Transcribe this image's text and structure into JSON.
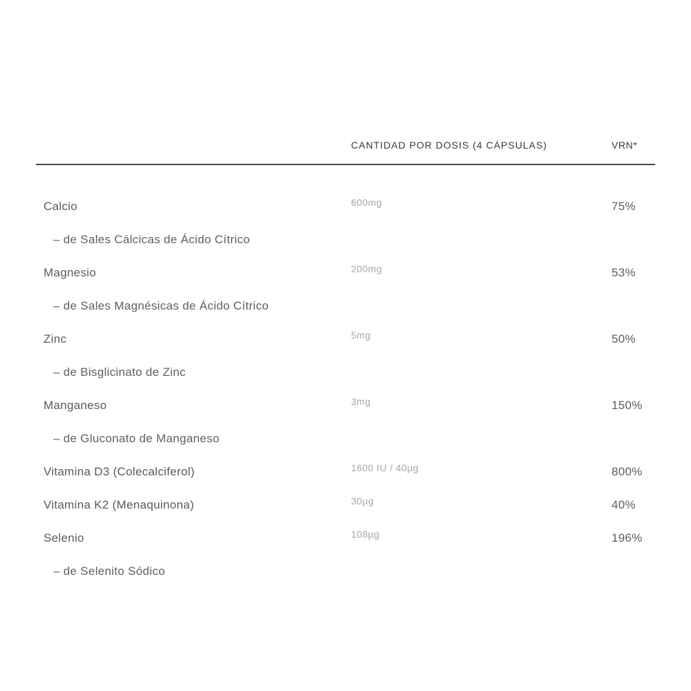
{
  "table": {
    "header": {
      "amount_label": "CANTIDAD POR DOSIS (4 CÁPSULAS)",
      "vrn_label": "VRN*"
    },
    "rows": [
      {
        "name": "Calcio",
        "amount": "600mg",
        "vrn": "75%",
        "sub": "– de Sales Cálcicas de Ácido Cítrico"
      },
      {
        "name": "Magnesio",
        "amount": "200mg",
        "vrn": "53%",
        "sub": "– de Sales Magnésicas de Ácido Cítrico"
      },
      {
        "name": "Zinc",
        "amount": "5mg",
        "vrn": "50%",
        "sub": "– de Bisglicinato de Zinc"
      },
      {
        "name": "Manganeso",
        "amount": "3mg",
        "vrn": "150%",
        "sub": "– de Gluconato de Manganeso"
      },
      {
        "name": "Vitamina D3 (Colecalciferol)",
        "amount": "1600 IU / 40µg",
        "vrn": "800%"
      },
      {
        "name": "Vitamina K2 (Menaquinona)",
        "amount": "30µg",
        "vrn": "40%"
      },
      {
        "name": "Selenio",
        "amount": "108µg",
        "vrn": "196%",
        "sub": "– de Selenito Sódico"
      }
    ],
    "colors": {
      "background": "#ffffff",
      "rule": "#474747",
      "header_text": "#383838",
      "name_text": "#5a5a5a",
      "amount_text": "#a6a6a6",
      "vrn_text": "#5d5d5d"
    }
  }
}
